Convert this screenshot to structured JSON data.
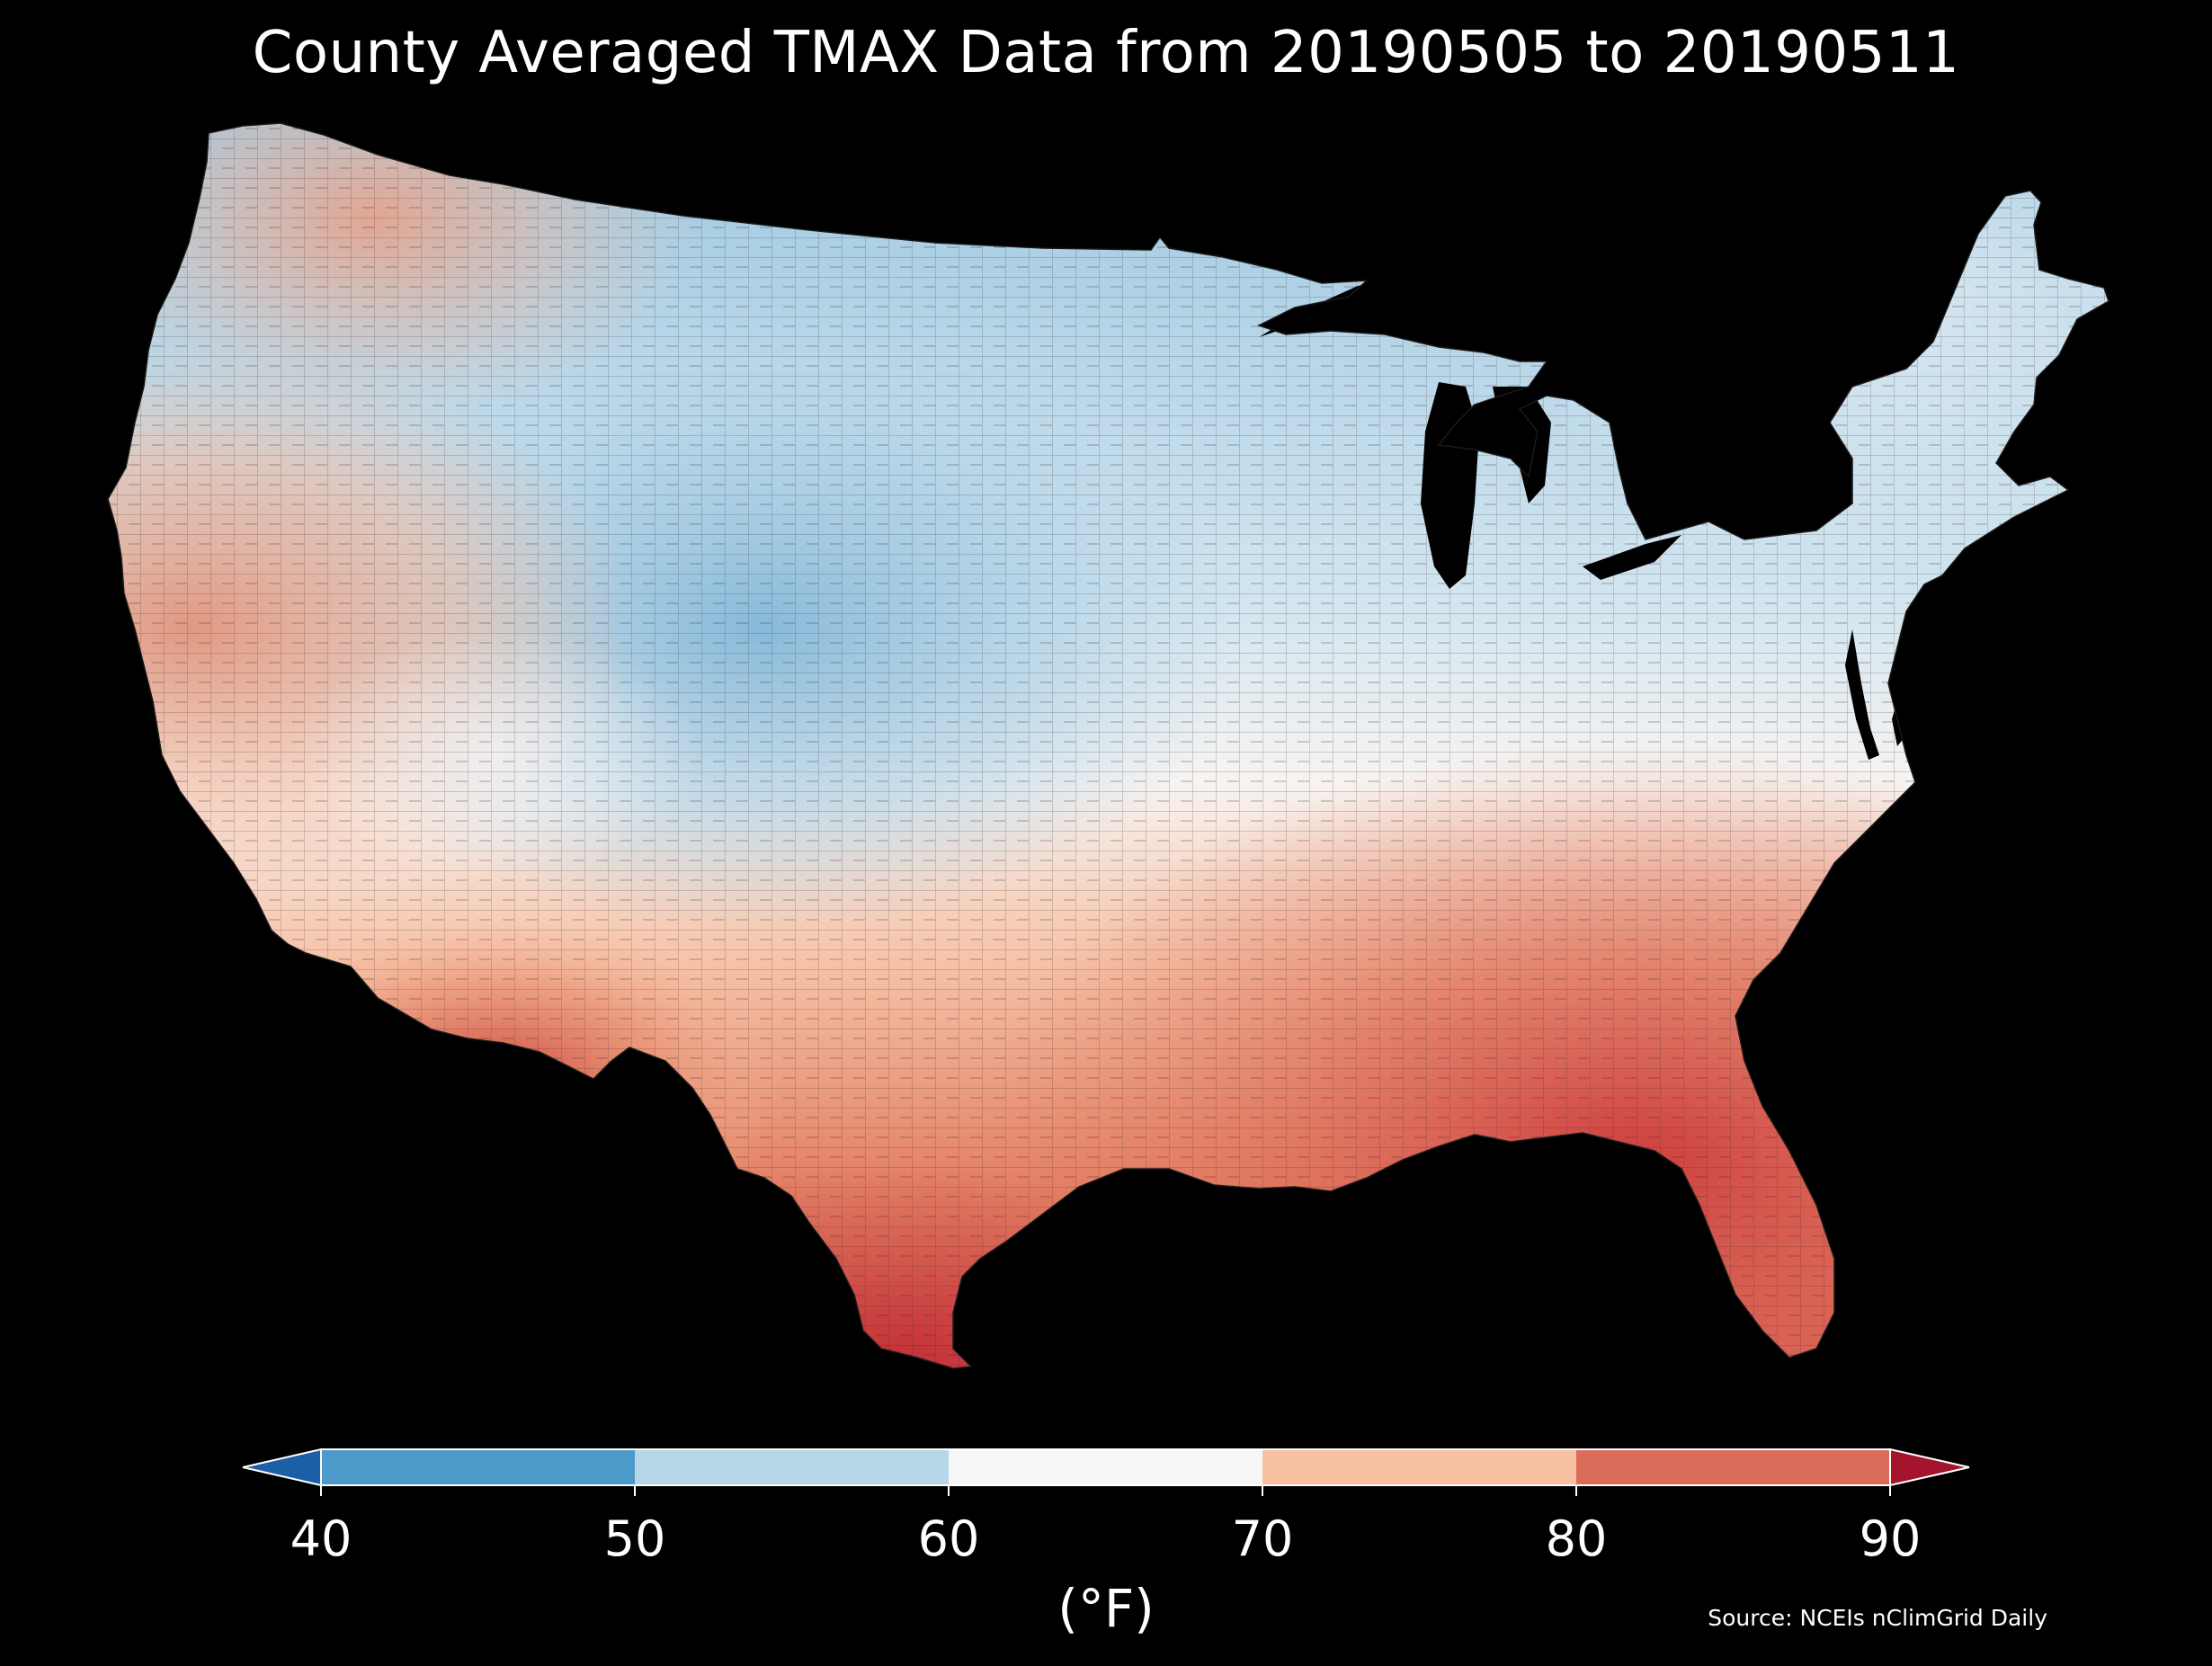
{
  "title": "County Averaged TMAX Data from 20190505 to 20190511",
  "source": "Source: NCEIs nClimGrid Daily",
  "colorbar": {
    "unit_label": "(°F)",
    "ticks": [
      "40",
      "50",
      "60",
      "70",
      "80",
      "90"
    ],
    "bins": [
      {
        "range": [
          40,
          50
        ],
        "color": "#4c9ac9"
      },
      {
        "range": [
          50,
          60
        ],
        "color": "#b6d6e8"
      },
      {
        "range": [
          60,
          70
        ],
        "color": "#f6f6f6"
      },
      {
        "range": [
          70,
          80
        ],
        "color": "#f8c0a3"
      },
      {
        "range": [
          80,
          90
        ],
        "color": "#db6c59"
      }
    ],
    "under_color": "#1b5fa6",
    "over_color": "#a4142c"
  },
  "colors": {
    "background": "#000000",
    "text": "#ffffff"
  },
  "map": {
    "region": "Contiguous United States",
    "variable": "TMAX",
    "start_date": "20190505",
    "end_date": "20190511"
  }
}
